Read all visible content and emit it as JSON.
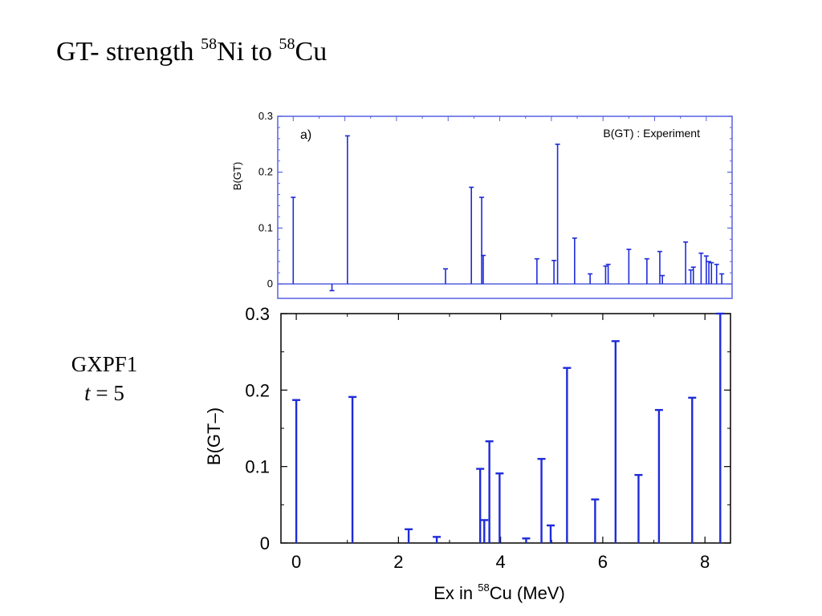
{
  "title": {
    "main": "GT- strength ",
    "a_mass": "58",
    "a_elem": "Ni to ",
    "b_mass": "58",
    "b_elem": "Cu"
  },
  "model": {
    "name": "GXPF1",
    "t_var": "t",
    "t_rest": " = 5"
  },
  "colors": {
    "stem": "#1f2bd8",
    "axis_top": "#5560e0",
    "axis_bottom": "#000000"
  },
  "chart_data": [
    {
      "type": "bar",
      "panel_label": "a)",
      "legend": "B(GT) : Experiment",
      "ylabel": "B(GT)",
      "xlim": [
        -0.3,
        8.5
      ],
      "ylim": [
        0,
        0.3
      ],
      "yticks": [
        0,
        0.1,
        0.2,
        0.3
      ],
      "yticklabels": [
        "0",
        "0.1",
        "0.2",
        "0.3"
      ],
      "x": [
        0.0,
        0.75,
        1.05,
        2.95,
        3.45,
        3.65,
        3.68,
        4.72,
        5.05,
        5.12,
        5.45,
        5.75,
        6.05,
        6.1,
        6.5,
        6.85,
        7.1,
        7.15,
        7.6,
        7.7,
        7.75,
        7.9,
        8.0,
        8.05,
        8.1,
        8.2,
        8.3
      ],
      "values": [
        0.155,
        -0.012,
        0.265,
        0.027,
        0.173,
        0.155,
        0.051,
        0.045,
        0.042,
        0.25,
        0.082,
        0.018,
        0.032,
        0.035,
        0.062,
        0.045,
        0.058,
        0.015,
        0.075,
        0.025,
        0.03,
        0.055,
        0.05,
        0.04,
        0.038,
        0.035,
        0.018
      ],
      "grid": false
    },
    {
      "type": "bar",
      "xlabel_pre": "Ex in ",
      "xlabel_sup": "58",
      "xlabel_post": "Cu (MeV)",
      "ylabel": "B(GT–)",
      "xlim": [
        -0.3,
        8.5
      ],
      "ylim": [
        0,
        0.3
      ],
      "xticks": [
        0,
        2,
        4,
        6,
        8
      ],
      "xticklabels": [
        "0",
        "2",
        "4",
        "6",
        "8"
      ],
      "yticks": [
        0,
        0.1,
        0.2,
        0.3
      ],
      "yticklabels": [
        "0",
        "0.1",
        "0.2",
        "0.3"
      ],
      "x": [
        0.0,
        1.1,
        2.2,
        2.75,
        3.6,
        3.68,
        3.78,
        3.98,
        4.5,
        4.8,
        4.98,
        5.3,
        5.85,
        6.25,
        6.7,
        7.1,
        7.75,
        8.3
      ],
      "values": [
        0.187,
        0.191,
        0.018,
        0.008,
        0.097,
        0.03,
        0.133,
        0.091,
        0.006,
        0.11,
        0.023,
        0.229,
        0.057,
        0.264,
        0.089,
        0.174,
        0.19,
        0.3
      ],
      "grid": false
    }
  ]
}
